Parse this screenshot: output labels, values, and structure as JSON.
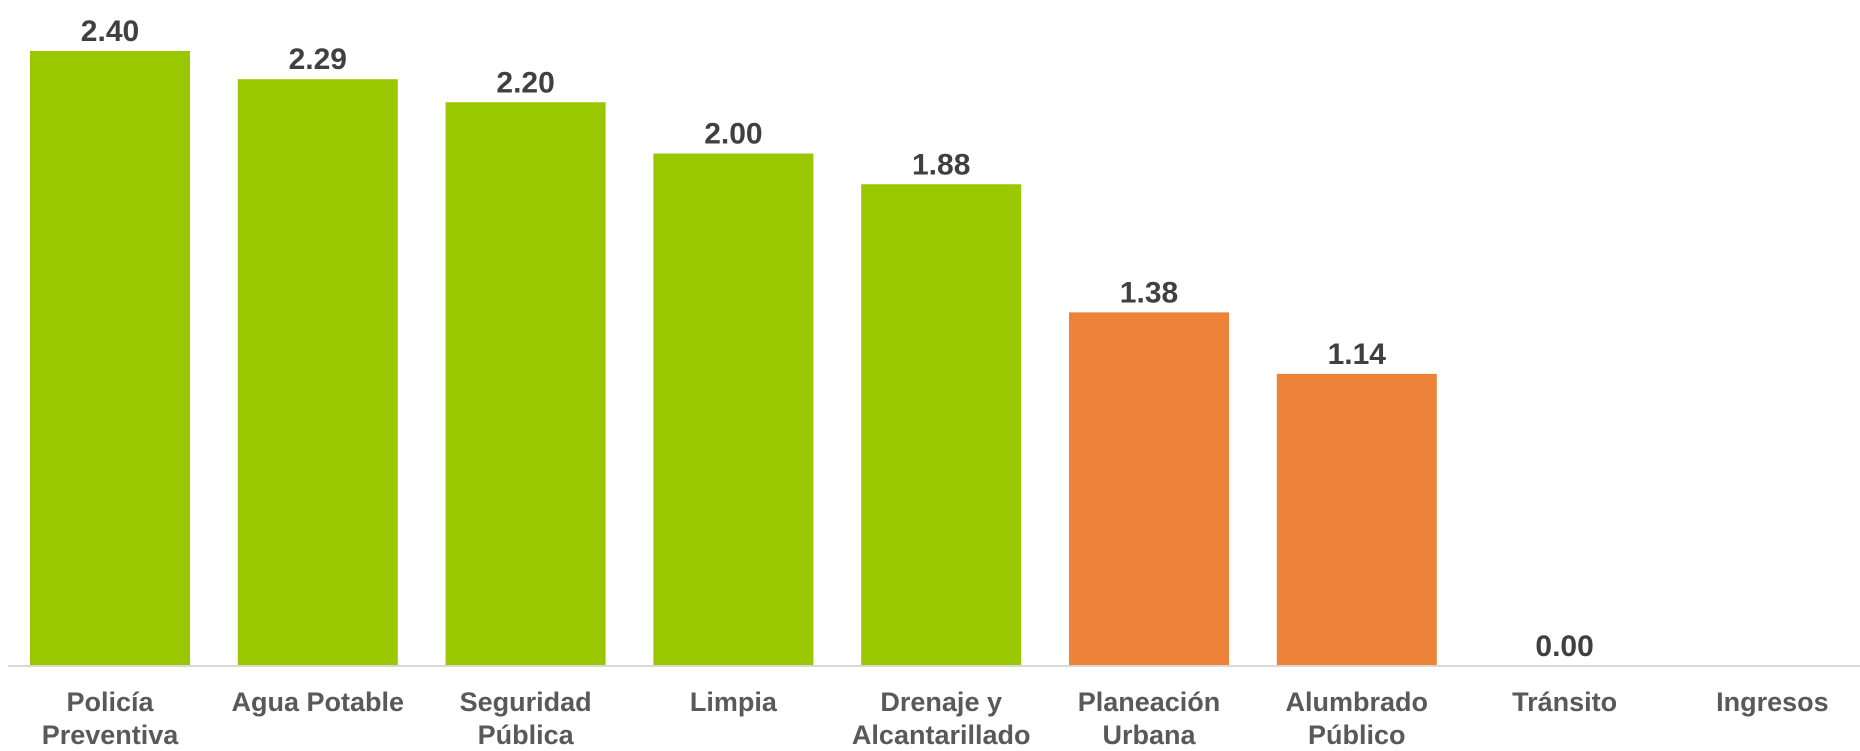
{
  "chart_data": {
    "type": "bar",
    "categories": [
      [
        "Policía",
        "Preventiva"
      ],
      [
        "Agua Potable"
      ],
      [
        "Seguridad",
        "Pública"
      ],
      [
        "Limpia"
      ],
      [
        "Drenaje y",
        "Alcantarillado"
      ],
      [
        "Planeación",
        "Urbana"
      ],
      [
        "Alumbrado",
        "Público"
      ],
      [
        "Tránsito"
      ],
      [
        "Ingresos"
      ]
    ],
    "values": [
      2.4,
      2.29,
      2.2,
      2.0,
      1.88,
      1.38,
      1.14,
      0.0,
      null
    ],
    "value_labels": [
      "2.40",
      "2.29",
      "2.20",
      "2.00",
      "1.88",
      "1.38",
      "1.14",
      "0.00",
      ""
    ],
    "bar_colors": [
      "#99c800",
      "#99c800",
      "#99c800",
      "#99c800",
      "#99c800",
      "#ed8338",
      "#ed8338",
      "#99c800",
      "#99c800"
    ],
    "ylim": [
      0,
      2.4
    ],
    "grid": false,
    "legend": "none",
    "title": "",
    "xlabel": "",
    "ylabel": ""
  }
}
